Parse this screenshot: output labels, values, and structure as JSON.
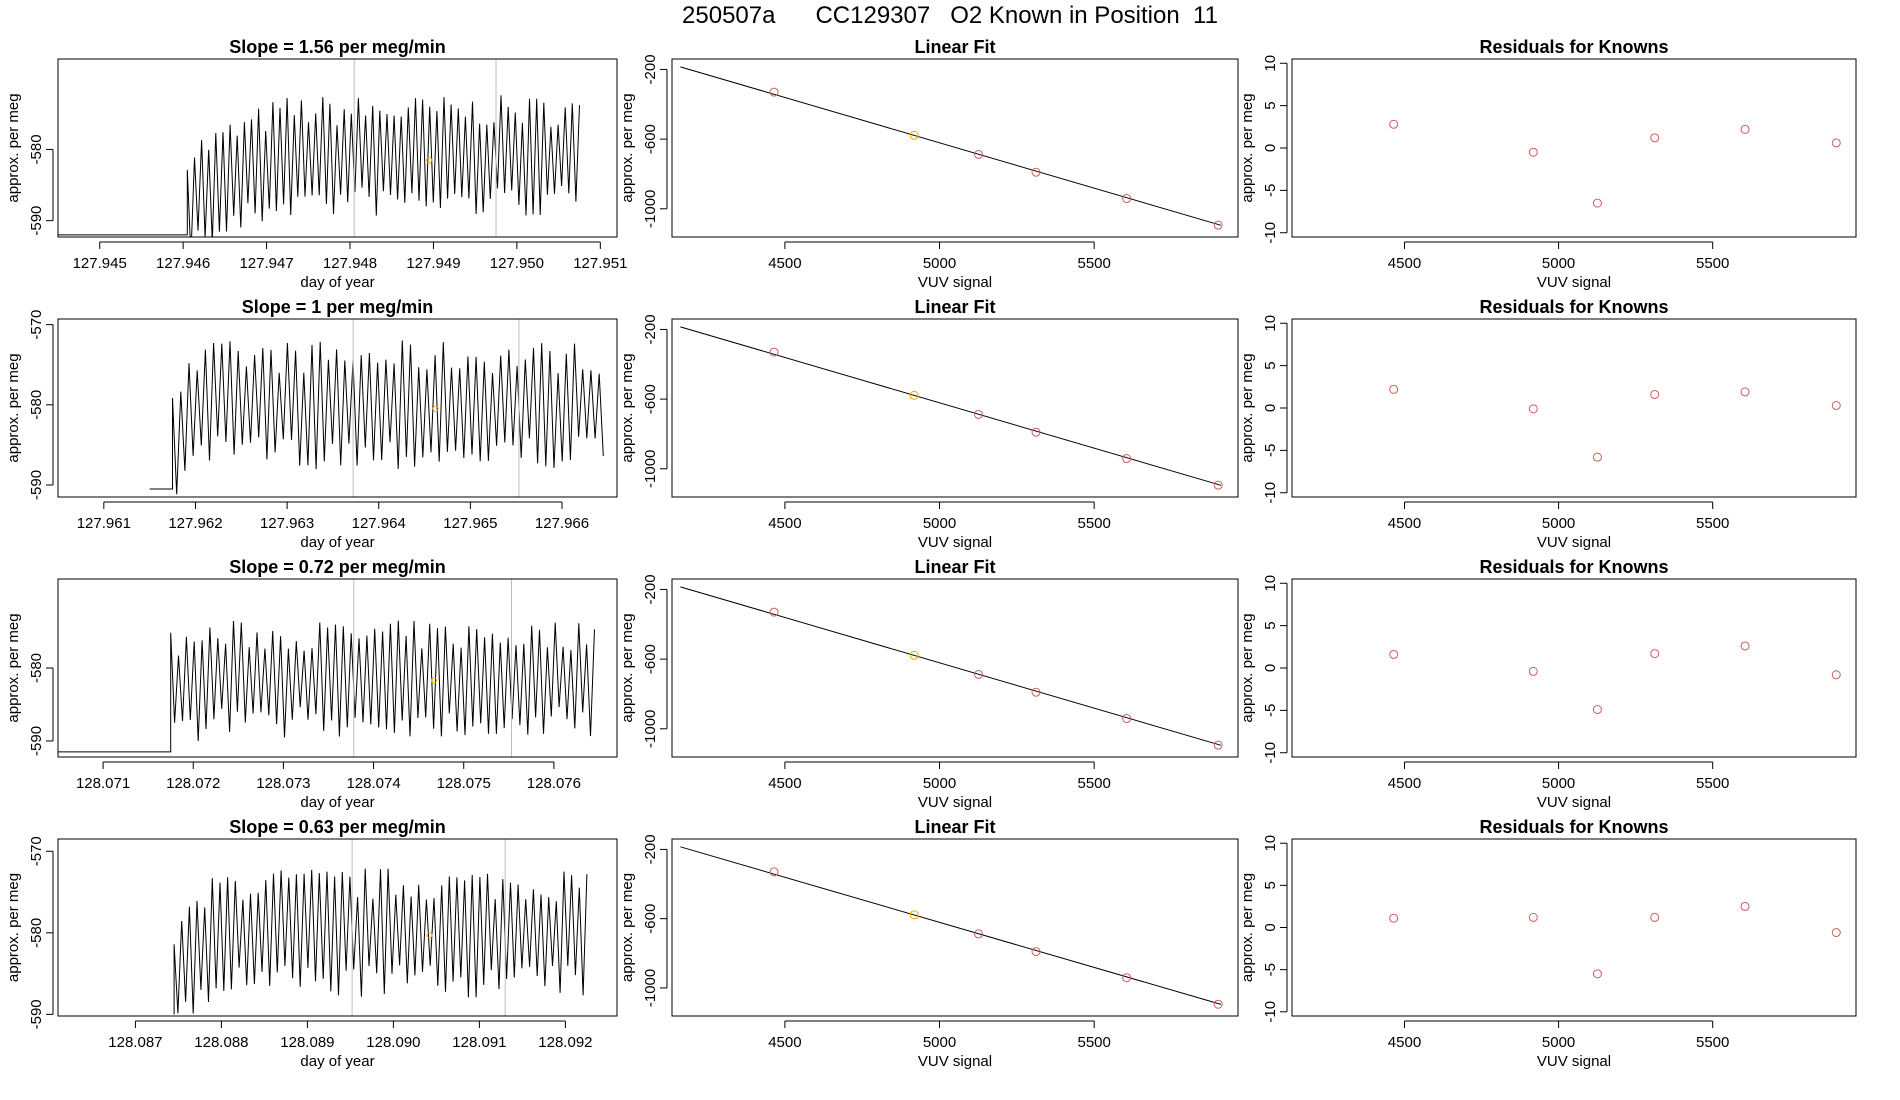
{
  "title": "250507a      CC129307   O2 Known in Position  11",
  "colors": {
    "known_point": "#cd5c5c",
    "standard_point": "#ffa500",
    "line": "#000000",
    "vline": "#bebebe"
  },
  "chart_data": [
    {
      "type": "line",
      "title": "Slope =  1.56  per meg/min",
      "xlabel": "day of year",
      "ylabel": "approx. per meg",
      "xlim": [
        127.9445,
        127.9512
      ],
      "ylim": [
        -592.3,
        -567.3
      ],
      "xticks": [
        127.945,
        127.946,
        127.947,
        127.948,
        127.949,
        127.95,
        127.951
      ],
      "xtick_labels": [
        "127.945",
        "127.946",
        "127.947",
        "127.948",
        "127.949",
        "127.950",
        "127.951"
      ],
      "yticks": [
        -590,
        -580
      ],
      "ytick_labels": [
        "-590",
        "-580"
      ],
      "signal": {
        "x_start": 127.94605,
        "x_end": 127.95075,
        "n_points": 110,
        "mean": -581.0,
        "ramp_start": -587.0,
        "ramp_x": 127.9472,
        "amplitude": 7.5,
        "pre_x_start": 127.9445,
        "pre_y": -592.0
      },
      "vlines": [
        127.94805,
        127.94975
      ],
      "marker": {
        "x": 127.94895,
        "y": -581.5
      }
    },
    {
      "type": "scatter",
      "title": "Linear Fit",
      "xlabel": "VUV signal",
      "ylabel": "approx. per meg",
      "xlim": [
        4135,
        5965
      ],
      "ylim": [
        -1162,
        -140
      ],
      "xticks": [
        4500,
        5000,
        5500
      ],
      "xtick_labels": [
        "4500",
        "5000",
        "5500"
      ],
      "yticks": [
        -1000,
        -600,
        -200
      ],
      "ytick_labels": [
        "-1000",
        "-600",
        "-200"
      ],
      "fit": {
        "x": [
          4162,
          5910
        ],
        "y": [
          -185,
          -1095
        ]
      },
      "points": [
        {
          "x": 4465,
          "y": -330,
          "kind": "known"
        },
        {
          "x": 4918,
          "y": -578,
          "kind": "standard"
        },
        {
          "x": 5126,
          "y": -688,
          "kind": "known"
        },
        {
          "x": 5312,
          "y": -790,
          "kind": "known"
        },
        {
          "x": 5605,
          "y": -941,
          "kind": "known"
        },
        {
          "x": 5901,
          "y": -1094,
          "kind": "known"
        }
      ]
    },
    {
      "type": "scatter",
      "title": "Residuals for Knowns",
      "xlabel": "VUV signal",
      "ylabel": "approx. per meg",
      "xlim": [
        4135,
        5965
      ],
      "ylim": [
        -10.5,
        10.5
      ],
      "xticks": [
        4500,
        5000,
        5500
      ],
      "xtick_labels": [
        "4500",
        "5000",
        "5500"
      ],
      "yticks": [
        -10,
        -5,
        0,
        5,
        10
      ],
      "ytick_labels": [
        "-10",
        "-5",
        "0",
        "5",
        "10"
      ],
      "points": [
        {
          "x": 4465,
          "y": 2.8,
          "kind": "known"
        },
        {
          "x": 4918,
          "y": -0.5,
          "kind": "known"
        },
        {
          "x": 5126,
          "y": -6.5,
          "kind": "known"
        },
        {
          "x": 5312,
          "y": 1.2,
          "kind": "known"
        },
        {
          "x": 5605,
          "y": 2.2,
          "kind": "known"
        },
        {
          "x": 5901,
          "y": 0.6,
          "kind": "known"
        }
      ]
    },
    {
      "type": "line",
      "title": "Slope =  1  per meg/min",
      "xlabel": "day of year",
      "ylabel": "approx. per meg",
      "xlim": [
        127.9605,
        127.9666
      ],
      "ylim": [
        -591.5,
        -569.3
      ],
      "xticks": [
        127.961,
        127.962,
        127.963,
        127.964,
        127.965,
        127.966
      ],
      "xtick_labels": [
        "127.961",
        "127.962",
        "127.963",
        "127.964",
        "127.965",
        "127.966"
      ],
      "yticks": [
        -590,
        -580,
        -570
      ],
      "ytick_labels": [
        "-590",
        "-580",
        "-570"
      ],
      "signal": {
        "x_start": 127.96175,
        "x_end": 127.96645,
        "n_points": 105,
        "mean": -580.0,
        "ramp_start": -584.0,
        "ramp_x": 127.9622,
        "amplitude": 7.0,
        "pre_x_start": 127.9615,
        "pre_y": -590.5
      },
      "vlines": [
        127.96372,
        127.96553
      ],
      "marker": {
        "x": 127.96462,
        "y": -580.5
      }
    },
    {
      "type": "scatter",
      "title": "Linear Fit",
      "xlabel": "VUV signal",
      "ylabel": "approx. per meg",
      "xlim": [
        4135,
        5965
      ],
      "ylim": [
        -1162,
        -140
      ],
      "xticks": [
        4500,
        5000,
        5500
      ],
      "xtick_labels": [
        "4500",
        "5000",
        "5500"
      ],
      "yticks": [
        -1000,
        -600,
        -200
      ],
      "ytick_labels": [
        "-1000",
        "-600",
        "-200"
      ],
      "fit": {
        "x": [
          4162,
          5910
        ],
        "y": [
          -185,
          -1095
        ]
      },
      "points": [
        {
          "x": 4465,
          "y": -330,
          "kind": "known"
        },
        {
          "x": 4918,
          "y": -578,
          "kind": "standard"
        },
        {
          "x": 5126,
          "y": -688,
          "kind": "known"
        },
        {
          "x": 5312,
          "y": -790,
          "kind": "known"
        },
        {
          "x": 5605,
          "y": -941,
          "kind": "known"
        },
        {
          "x": 5901,
          "y": -1094,
          "kind": "known"
        }
      ]
    },
    {
      "type": "scatter",
      "title": "Residuals for Knowns",
      "xlabel": "VUV signal",
      "ylabel": "approx. per meg",
      "xlim": [
        4135,
        5965
      ],
      "ylim": [
        -10.5,
        10.5
      ],
      "xticks": [
        4500,
        5000,
        5500
      ],
      "xtick_labels": [
        "4500",
        "5000",
        "5500"
      ],
      "yticks": [
        -10,
        -5,
        0,
        5,
        10
      ],
      "ytick_labels": [
        "-10",
        "-5",
        "0",
        "5",
        "10"
      ],
      "points": [
        {
          "x": 4465,
          "y": 2.2,
          "kind": "known"
        },
        {
          "x": 4918,
          "y": -0.1,
          "kind": "known"
        },
        {
          "x": 5126,
          "y": -5.8,
          "kind": "known"
        },
        {
          "x": 5312,
          "y": 1.6,
          "kind": "known"
        },
        {
          "x": 5605,
          "y": 1.9,
          "kind": "known"
        },
        {
          "x": 5901,
          "y": 0.3,
          "kind": "known"
        }
      ]
    },
    {
      "type": "line",
      "title": "Slope =  0.72  per meg/min",
      "xlabel": "day of year",
      "ylabel": "approx. per meg",
      "xlim": [
        128.0705,
        128.0767
      ],
      "ylim": [
        -592.2,
        -567.8
      ],
      "xticks": [
        128.071,
        128.072,
        128.073,
        128.074,
        128.075,
        128.076
      ],
      "xtick_labels": [
        "128.071",
        "128.072",
        "128.073",
        "128.074",
        "128.075",
        "128.076"
      ],
      "yticks": [
        -590,
        -580
      ],
      "ytick_labels": [
        "-590",
        "-580"
      ],
      "signal": {
        "x_start": 128.07175,
        "x_end": 128.07645,
        "n_points": 108,
        "mean": -581.5,
        "ramp_start": -583.0,
        "ramp_x": 128.0722,
        "amplitude": 7.0,
        "pre_x_start": 128.0705,
        "pre_y": -591.5
      },
      "vlines": [
        128.07378,
        128.07553
      ],
      "marker": {
        "x": 128.07467,
        "y": -581.7
      }
    },
    {
      "type": "scatter",
      "title": "Linear Fit",
      "xlabel": "VUV signal",
      "ylabel": "approx. per meg",
      "xlim": [
        4135,
        5965
      ],
      "ylim": [
        -1162,
        -140
      ],
      "xticks": [
        4500,
        5000,
        5500
      ],
      "xtick_labels": [
        "4500",
        "5000",
        "5500"
      ],
      "yticks": [
        -1000,
        -600,
        -200
      ],
      "ytick_labels": [
        "-1000",
        "-600",
        "-200"
      ],
      "fit": {
        "x": [
          4162,
          5910
        ],
        "y": [
          -185,
          -1095
        ]
      },
      "points": [
        {
          "x": 4465,
          "y": -330,
          "kind": "known"
        },
        {
          "x": 4918,
          "y": -578,
          "kind": "standard"
        },
        {
          "x": 5126,
          "y": -688,
          "kind": "known"
        },
        {
          "x": 5312,
          "y": -790,
          "kind": "known"
        },
        {
          "x": 5605,
          "y": -941,
          "kind": "known"
        },
        {
          "x": 5901,
          "y": -1094,
          "kind": "known"
        }
      ]
    },
    {
      "type": "scatter",
      "title": "Residuals for Knowns",
      "xlabel": "VUV signal",
      "ylabel": "approx. per meg",
      "xlim": [
        4135,
        5965
      ],
      "ylim": [
        -10.5,
        10.5
      ],
      "xticks": [
        4500,
        5000,
        5500
      ],
      "xtick_labels": [
        "4500",
        "5000",
        "5500"
      ],
      "yticks": [
        -10,
        -5,
        0,
        5,
        10
      ],
      "ytick_labels": [
        "-10",
        "-5",
        "0",
        "5",
        "10"
      ],
      "points": [
        {
          "x": 4465,
          "y": 1.6,
          "kind": "known"
        },
        {
          "x": 4918,
          "y": -0.4,
          "kind": "known"
        },
        {
          "x": 5126,
          "y": -4.9,
          "kind": "known"
        },
        {
          "x": 5312,
          "y": 1.7,
          "kind": "known"
        },
        {
          "x": 5605,
          "y": 2.6,
          "kind": "known"
        },
        {
          "x": 5901,
          "y": -0.8,
          "kind": "known"
        }
      ]
    },
    {
      "type": "line",
      "title": "Slope =  0.63  per meg/min",
      "xlabel": "day of year",
      "ylabel": "approx. per meg",
      "xlim": [
        128.0861,
        128.0926
      ],
      "ylim": [
        -590.2,
        -568.5
      ],
      "xticks": [
        128.087,
        128.088,
        128.089,
        128.09,
        128.091,
        128.092
      ],
      "xtick_labels": [
        "128.087",
        "128.088",
        "128.089",
        "128.090",
        "128.091",
        "128.092"
      ],
      "yticks": [
        -590,
        -580,
        -570
      ],
      "ytick_labels": [
        "-590",
        "-580",
        "-570"
      ],
      "signal": {
        "x_start": 128.08745,
        "x_end": 128.09225,
        "n_points": 108,
        "mean": -580.0,
        "ramp_start": -586.0,
        "ramp_x": 128.088,
        "amplitude": 7.0,
        "pre_x_start": 128.08745,
        "pre_y": -590.0
      },
      "vlines": [
        128.08952,
        128.0913
      ],
      "marker": {
        "x": 128.09042,
        "y": -580.3
      }
    },
    {
      "type": "scatter",
      "title": "Linear Fit",
      "xlabel": "VUV signal",
      "ylabel": "approx. per meg",
      "xlim": [
        4135,
        5965
      ],
      "ylim": [
        -1162,
        -140
      ],
      "xticks": [
        4500,
        5000,
        5500
      ],
      "xtick_labels": [
        "4500",
        "5000",
        "5500"
      ],
      "yticks": [
        -1000,
        -600,
        -200
      ],
      "ytick_labels": [
        "-1000",
        "-600",
        "-200"
      ],
      "fit": {
        "x": [
          4162,
          5910
        ],
        "y": [
          -185,
          -1095
        ]
      },
      "points": [
        {
          "x": 4465,
          "y": -330,
          "kind": "known"
        },
        {
          "x": 4918,
          "y": -578,
          "kind": "standard"
        },
        {
          "x": 5126,
          "y": -688,
          "kind": "known"
        },
        {
          "x": 5312,
          "y": -790,
          "kind": "known"
        },
        {
          "x": 5605,
          "y": -941,
          "kind": "known"
        },
        {
          "x": 5901,
          "y": -1094,
          "kind": "known"
        }
      ]
    },
    {
      "type": "scatter",
      "title": "Residuals for Knowns",
      "xlabel": "VUV signal",
      "ylabel": "approx. per meg",
      "xlim": [
        4135,
        5965
      ],
      "ylim": [
        -10.5,
        10.5
      ],
      "xticks": [
        4500,
        5000,
        5500
      ],
      "xtick_labels": [
        "4500",
        "5000",
        "5500"
      ],
      "yticks": [
        -10,
        -5,
        0,
        5,
        10
      ],
      "ytick_labels": [
        "-10",
        "-5",
        "0",
        "5",
        "10"
      ],
      "points": [
        {
          "x": 4465,
          "y": 1.1,
          "kind": "known"
        },
        {
          "x": 4918,
          "y": 1.2,
          "kind": "known"
        },
        {
          "x": 5126,
          "y": -5.5,
          "kind": "known"
        },
        {
          "x": 5312,
          "y": 1.2,
          "kind": "known"
        },
        {
          "x": 5605,
          "y": 2.5,
          "kind": "known"
        },
        {
          "x": 5901,
          "y": -0.6,
          "kind": "known"
        }
      ]
    }
  ]
}
